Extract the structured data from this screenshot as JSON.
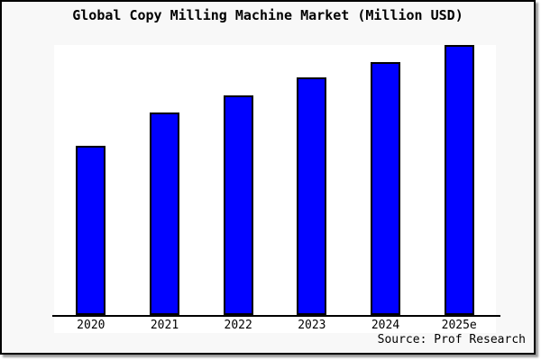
{
  "chart_data": {
    "type": "bar",
    "title": "Global Copy Milling Machine Market (Million USD)",
    "categories": [
      "2020",
      "2021",
      "2022",
      "2023",
      "2024",
      "2025e"
    ],
    "values": [
      62.7,
      75.0,
      81.3,
      88.0,
      93.7,
      100.0
    ],
    "value_note": "Y-axis has no ticks, labels or gridlines; values are relative bar heights normalized to 2025e = 100",
    "xlabel": "",
    "ylabel": "",
    "grid": false,
    "legend": false,
    "bar_color": "#0000ff",
    "bar_border_color": "#000000",
    "figure_background": "#f8f8f8",
    "plot_background": "#ffffff",
    "source_label": "Source: Prof Research"
  }
}
